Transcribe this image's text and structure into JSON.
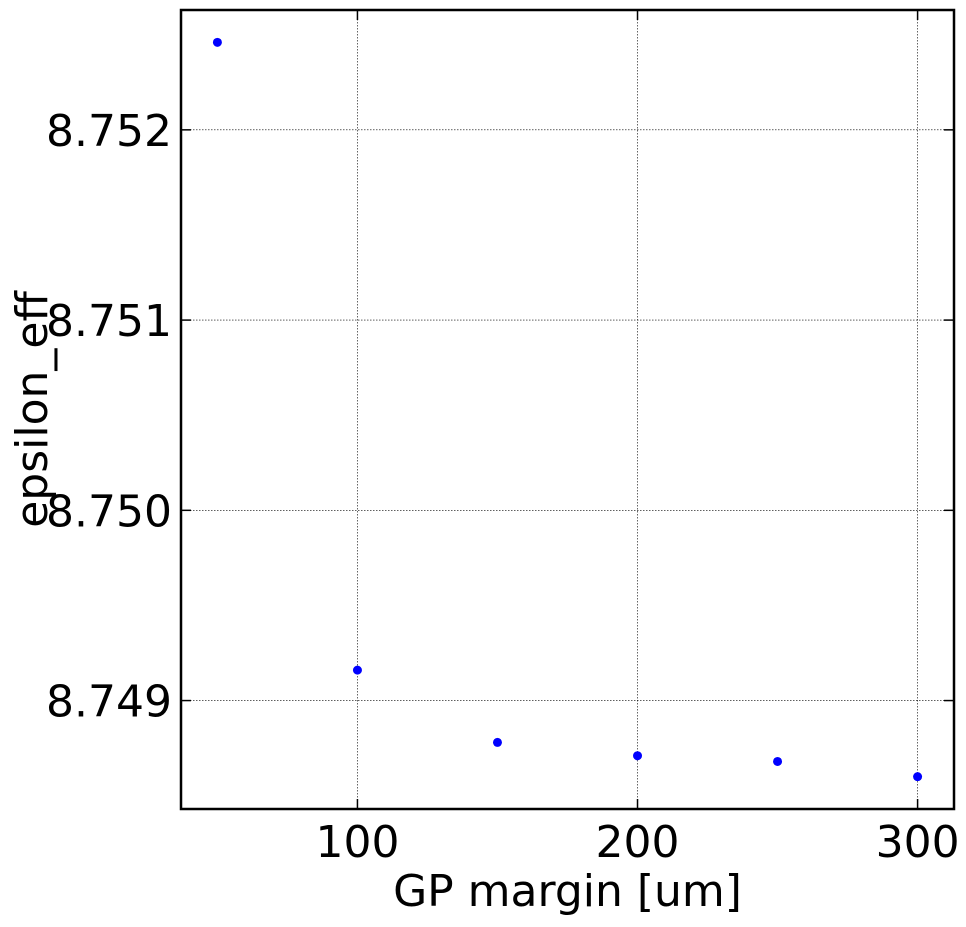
{
  "chart_data": {
    "type": "scatter",
    "title": "",
    "xlabel": "GP margin [um]",
    "ylabel": "epsilon_eff",
    "xlim": [
      37,
      313
    ],
    "ylim": [
      8.74843,
      8.75263
    ],
    "xticks": [
      100,
      200,
      300
    ],
    "yticks": [
      8.749,
      8.75,
      8.751,
      8.752
    ],
    "ytick_labels": [
      "8.749",
      "8.750",
      "8.751",
      "8.752"
    ],
    "grid": true,
    "series": [
      {
        "color": "#0000ff",
        "x": [
          50,
          100,
          150,
          200,
          250,
          300
        ],
        "y": [
          8.75246,
          8.74916,
          8.74878,
          8.74871,
          8.74868,
          8.7486
        ]
      }
    ]
  }
}
